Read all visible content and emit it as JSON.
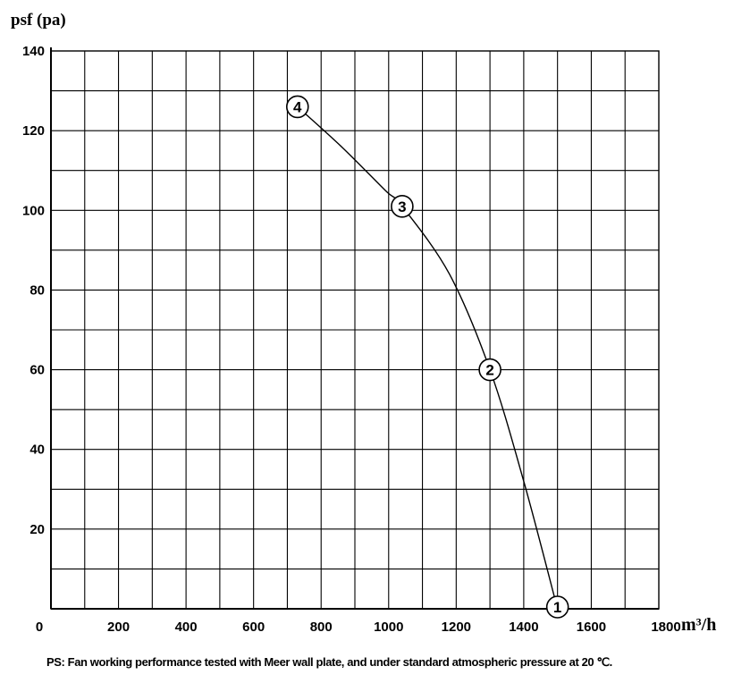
{
  "chart_data": {
    "type": "line",
    "title": "",
    "ylabel": "psf (pa)",
    "xlabel": "m³/h",
    "xlim": [
      0,
      1800
    ],
    "ylim": [
      0,
      140
    ],
    "x_ticks": [
      "0",
      "200",
      "400",
      "600",
      "800",
      "1000",
      "1200",
      "1400",
      "1600",
      "1800"
    ],
    "y_ticks": [
      "20",
      "40",
      "60",
      "80",
      "100",
      "120",
      "140"
    ],
    "x_minor_step": 100,
    "y_minor_step": 10,
    "grid": true,
    "legend": "none",
    "curve": {
      "x": [
        730,
        860,
        990,
        1040,
        1180,
        1300,
        1400,
        1500
      ],
      "y": [
        126,
        116,
        105,
        101,
        84,
        60,
        32,
        0
      ]
    },
    "points": [
      {
        "label": "1",
        "x": 1500,
        "y": 0
      },
      {
        "label": "2",
        "x": 1300,
        "y": 60
      },
      {
        "label": "3",
        "x": 1040,
        "y": 101
      },
      {
        "label": "4",
        "x": 730,
        "y": 126
      }
    ]
  },
  "note": "PS: Fan working performance tested with Meer wall plate, and under standard atmospheric pressure at 20 ℃."
}
